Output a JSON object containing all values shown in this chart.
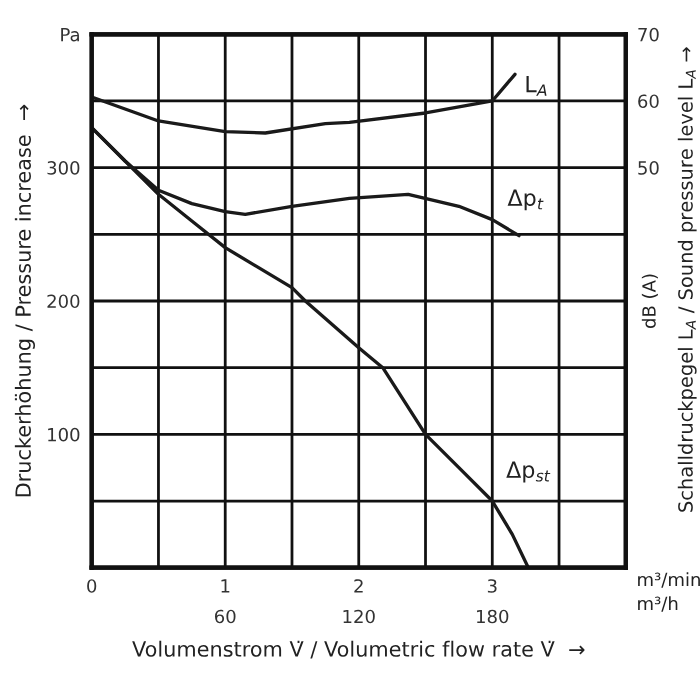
{
  "chart_data": {
    "type": "line",
    "xlabel": "Volumenstrom V̇ / Volumetric flow rate V̇  →",
    "ylabel": "Druckerhöhung / Pressure increase  →",
    "y2label": "Schalldruckpegel L$_{A}$ / Sound pressure level L$_{A}$ →",
    "xlim": [
      0,
      4
    ],
    "xticks": [
      0,
      {
        "value": 0.5,
        "label": null
      },
      1,
      {
        "value": 1.5,
        "label": null
      },
      2,
      {
        "value": 2.5,
        "label": null
      },
      3,
      {
        "value": 3.5,
        "label": null
      },
      {
        "value": 4,
        "label": null
      }
    ],
    "x2lim": [
      0,
      240
    ],
    "x2ticks": [
      60,
      120,
      180
    ],
    "ylim": [
      0,
      400
    ],
    "yticks": [
      {
        "value": 0,
        "label": null
      },
      {
        "value": 50,
        "label": null
      },
      100,
      {
        "value": 150,
        "label": null
      },
      200,
      {
        "value": 250,
        "label": null
      },
      300,
      {
        "value": 350,
        "label": null
      },
      {
        "value": 400,
        "label": "Pa"
      }
    ],
    "y2lim": [
      -10,
      70
    ],
    "y2ticks": [
      50,
      60,
      70
    ],
    "grid": true,
    "legend": false,
    "marker": "none",
    "line_style": "solid",
    "series": [
      {
        "color": "#1a1a1a",
        "x": [
          0,
          0.25,
          0.5,
          0.75,
          1,
          1.25,
          1.5,
          1.6,
          2,
          2.18,
          2.5,
          2.75,
          3,
          3.15,
          3.27
        ],
        "values": [
          330,
          305,
          280,
          260,
          240,
          225,
          210,
          200,
          165,
          150,
          100,
          75,
          50,
          25,
          0
        ]
      },
      {
        "color": "#1a1a1a",
        "x": [
          0,
          0.25,
          0.5,
          0.75,
          1,
          1.15,
          1.5,
          1.93,
          2.37,
          2.75,
          3,
          3.2
        ],
        "values": [
          330,
          305,
          283,
          273,
          267,
          265,
          271,
          277,
          280,
          271,
          261,
          249
        ]
      },
      {
        "color": "#1a1a1a",
        "axis": "y2",
        "x": [
          0,
          0.25,
          0.5,
          1,
          1.3,
          1.75,
          1.93,
          2.5,
          3,
          3.17
        ],
        "values": [
          60.6,
          58.8,
          57,
          55.4,
          55.2,
          56.6,
          56.8,
          58.2,
          60,
          64
        ]
      }
    ],
    "annotations": [
      "Δp$_{st}$",
      "Δp$_{t}$",
      "L$_{A}$",
      "dB (A)",
      "m³/min",
      "m³/h"
    ]
  }
}
